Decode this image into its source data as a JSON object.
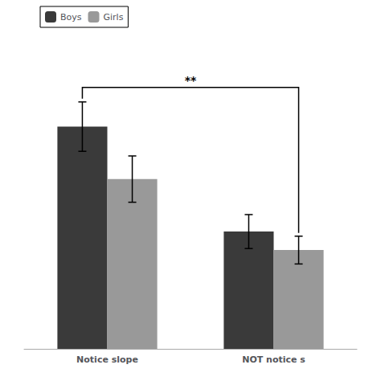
{
  "chart_data": {
    "type": "bar",
    "categories": [
      "Notice slope",
      "NOT notice s"
    ],
    "series": [
      {
        "name": "Boys",
        "color": "#3a3a3a",
        "values": [
          0.72,
          0.38
        ],
        "errors": [
          0.08,
          0.055
        ]
      },
      {
        "name": "Girls",
        "color": "#999999",
        "values": [
          0.55,
          0.32
        ],
        "errors": [
          0.075,
          0.045
        ]
      }
    ],
    "ylim": [
      0,
      1.0
    ],
    "tick_labels": "x",
    "grid": false,
    "legend": "upper left",
    "annotations": [
      {
        "text": "**"
      }
    ]
  }
}
